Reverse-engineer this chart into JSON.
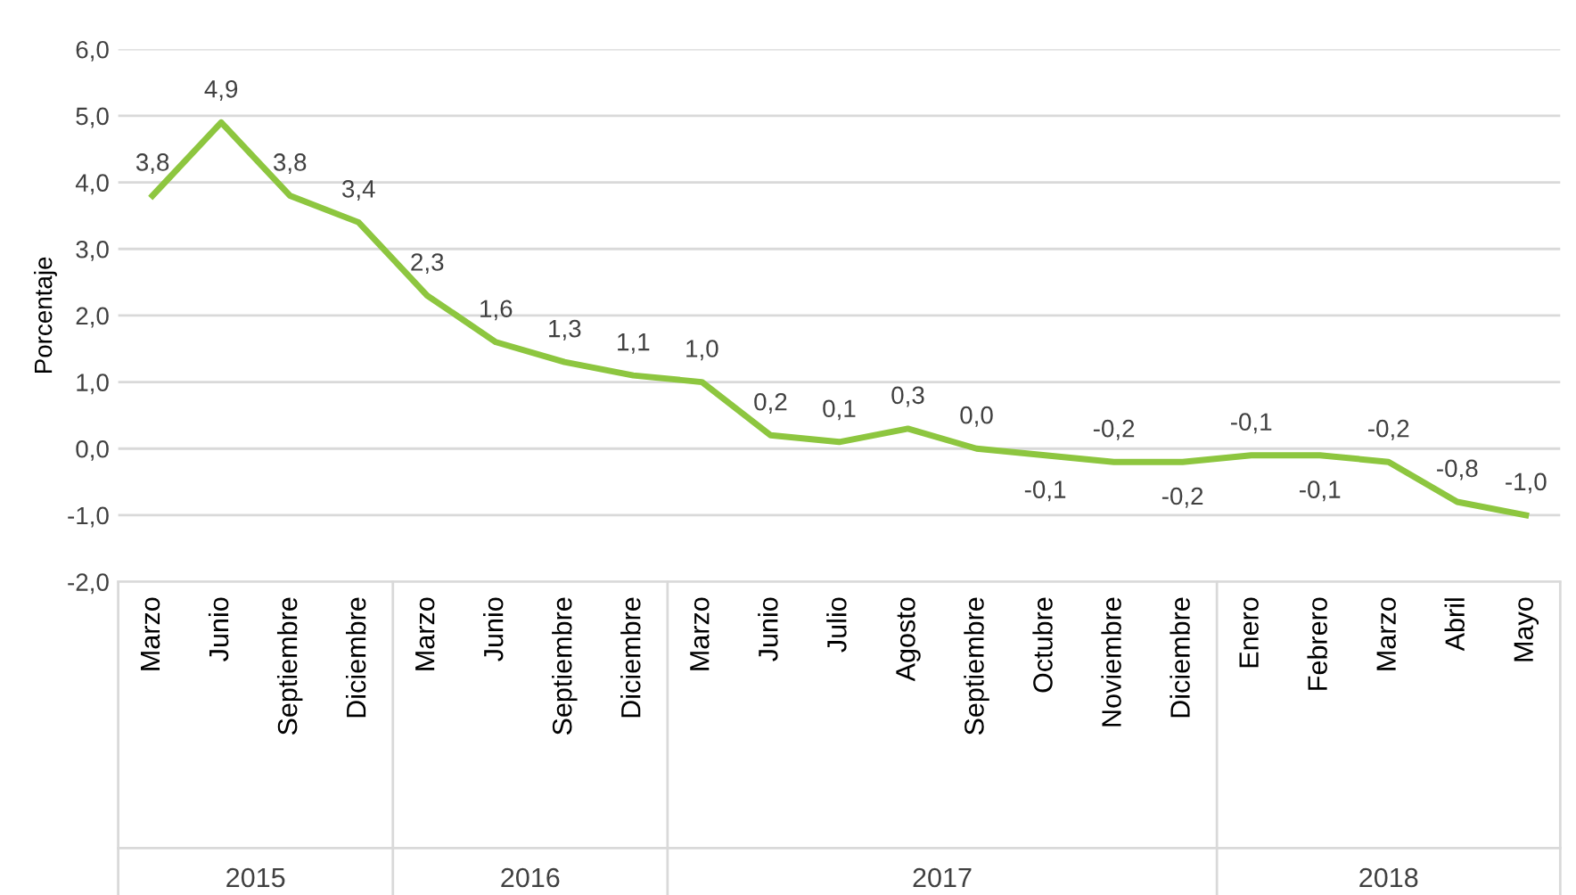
{
  "chart_data": {
    "type": "line",
    "ylabel": "Porcentaje",
    "categories": [
      "Marzo",
      "Junio",
      "Septiembre",
      "Diciembre",
      "Marzo",
      "Junio",
      "Septiembre",
      "Diciembre",
      "Marzo",
      "Junio",
      "Julio",
      "Agosto",
      "Septiembre",
      "Octubre",
      "Noviembre",
      "Diciembre",
      "Enero",
      "Febrero",
      "Marzo",
      "Abril",
      "Mayo"
    ],
    "series": [
      {
        "color": "#8dc63f",
        "values": [
          3.8,
          4.9,
          3.8,
          3.4,
          2.3,
          1.6,
          1.3,
          1.1,
          1.0,
          0.2,
          0.1,
          0.3,
          0.0,
          -0.1,
          -0.2,
          -0.2,
          -0.1,
          -0.1,
          -0.2,
          -0.8,
          -1.0
        ],
        "value_labels": [
          "3,8",
          "4,9",
          "3,8",
          "3,4",
          "2,3",
          "1,6",
          "1,3",
          "1,1",
          "1,0",
          "0,2",
          "0,1",
          "0,3",
          "0,0",
          "-0,1",
          "-0,2",
          "-0,2",
          "-0,1",
          "-0,1",
          "-0,2",
          "-0,8",
          "-1,0"
        ]
      }
    ],
    "annotations": [
      "2015",
      "2016",
      "2017",
      "2018"
    ],
    "ylim": [
      -2.0,
      6.0
    ],
    "yticks": [
      {
        "value": -2.0,
        "label": "-2,0"
      },
      {
        "value": -1.0,
        "label": "-1,0"
      },
      {
        "value": 0.0,
        "label": "0,0"
      },
      {
        "value": 1.0,
        "label": "1,0"
      },
      {
        "value": 2.0,
        "label": "2,0"
      },
      {
        "value": 3.0,
        "label": "3,0"
      },
      {
        "value": 4.0,
        "label": "4,0"
      },
      {
        "value": 5.0,
        "label": "5,0"
      },
      {
        "value": 6.0,
        "label": "6,0"
      }
    ],
    "grid": "y",
    "marker": "none",
    "line_style": "solid",
    "legend": false
  }
}
